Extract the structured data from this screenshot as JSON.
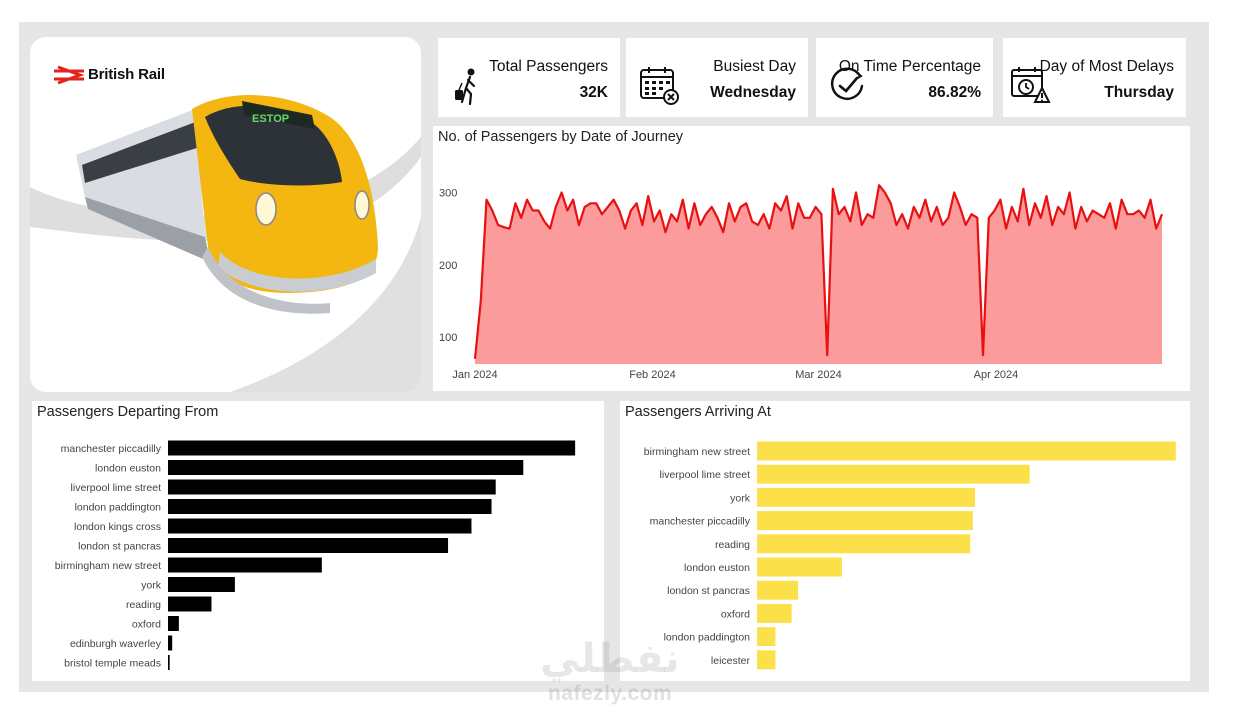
{
  "brand": {
    "name": "British Rail"
  },
  "kpis": [
    {
      "title": "Total Passengers",
      "value": "32K",
      "icon": "person-luggage-icon"
    },
    {
      "title": "Busiest Day",
      "value": "Wednesday",
      "icon": "calendar-cross-icon"
    },
    {
      "title": "On Time Percentage",
      "value": "86.82%",
      "icon": "clock-check-icon"
    },
    {
      "title": "Day of Most Delays",
      "value": "Thursday",
      "icon": "calendar-warning-icon"
    }
  ],
  "colors": {
    "line": "#e81010",
    "area": "#fb9b9b",
    "departing_bar": "#000000",
    "arriving_bar": "#fbe04a",
    "frame": "#e6e6e6"
  },
  "watermark": {
    "arabic": "نفطلي",
    "latin": "nafezly.com"
  },
  "chart_data": [
    {
      "type": "area",
      "title": "No. of Passengers by Date of Journey",
      "x_start": "2024-01-01",
      "x_end": "2024-04-30",
      "x_ticks": [
        "Jan 2024",
        "Feb 2024",
        "Mar 2024",
        "Apr 2024"
      ],
      "y_ticks": [
        100,
        200,
        300
      ],
      "ylim": [
        60,
        320
      ],
      "grid": false,
      "values": [
        70,
        150,
        290,
        275,
        255,
        252,
        250,
        285,
        265,
        290,
        275,
        275,
        260,
        250,
        280,
        300,
        275,
        290,
        255,
        280,
        285,
        285,
        270,
        280,
        290,
        275,
        250,
        275,
        285,
        255,
        295,
        260,
        275,
        245,
        270,
        260,
        290,
        250,
        285,
        255,
        270,
        280,
        265,
        245,
        285,
        260,
        280,
        285,
        260,
        255,
        270,
        250,
        285,
        275,
        295,
        250,
        285,
        265,
        265,
        280,
        270,
        75,
        305,
        270,
        280,
        260,
        300,
        255,
        270,
        265,
        310,
        300,
        285,
        255,
        270,
        250,
        280,
        265,
        290,
        260,
        280,
        255,
        265,
        300,
        280,
        255,
        270,
        265,
        75,
        265,
        275,
        290,
        250,
        280,
        260,
        305,
        255,
        285,
        265,
        295,
        255,
        280,
        270,
        300,
        250,
        280,
        260,
        275,
        270,
        265,
        285,
        250,
        290,
        270,
        270,
        275,
        265,
        290,
        250,
        270
      ]
    },
    {
      "type": "bar",
      "orientation": "horizontal",
      "title": "Passengers Departing From",
      "categories": [
        "manchester piccadilly",
        "london euston",
        "liverpool lime street",
        "london paddington",
        "london kings cross",
        "london st pancras",
        "birmingham new street",
        "york",
        "reading",
        "oxford",
        "edinburgh waverley",
        "bristol temple meads"
      ],
      "values": [
        4870,
        4250,
        3920,
        3870,
        3630,
        3350,
        1840,
        800,
        520,
        130,
        50,
        20
      ],
      "xlim": [
        0,
        5000
      ]
    },
    {
      "type": "bar",
      "orientation": "horizontal",
      "title": "Passengers Arriving At",
      "categories": [
        "birmingham new street",
        "liverpool lime street",
        "york",
        "manchester piccadilly",
        "reading",
        "london euston",
        "london st pancras",
        "oxford",
        "london paddington",
        "leicester"
      ],
      "values": [
        7740,
        5040,
        4030,
        3990,
        3940,
        1570,
        760,
        640,
        340,
        340
      ],
      "xlim": [
        0,
        7800
      ]
    }
  ]
}
